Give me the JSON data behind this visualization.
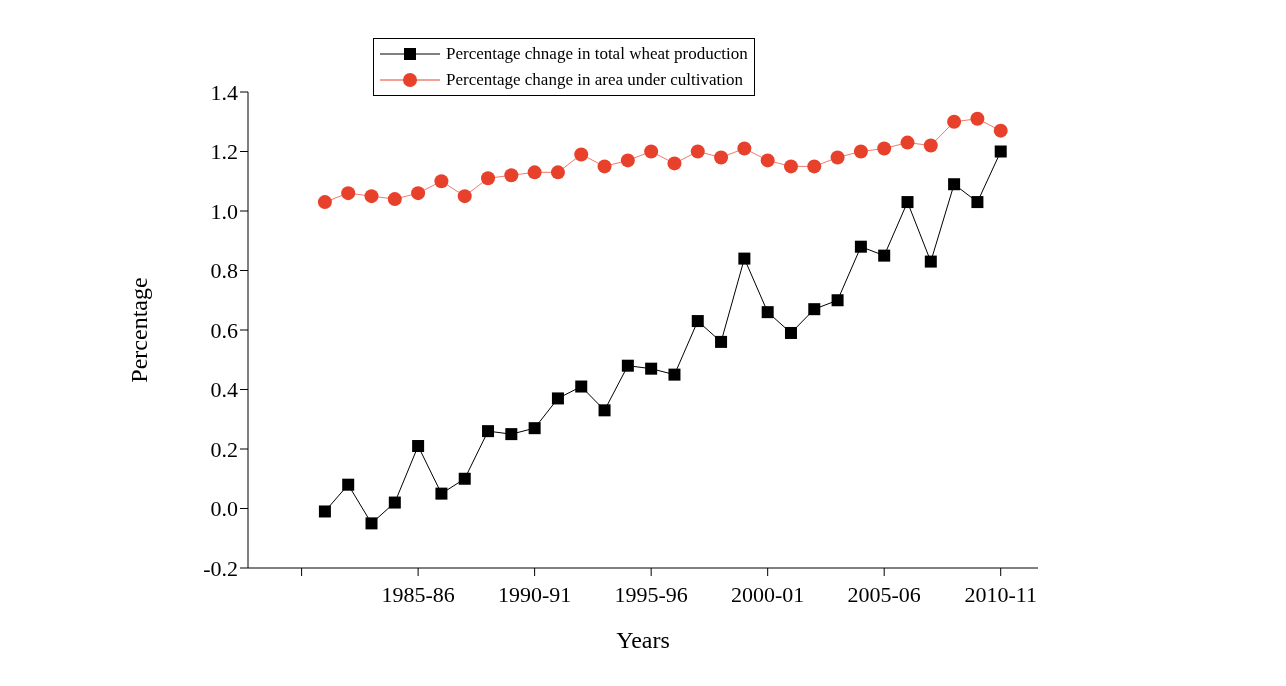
{
  "chart_data": {
    "type": "line",
    "xlabel": "Years",
    "ylabel": "Percentage",
    "legend": "top",
    "grid": false,
    "line_style": "solid",
    "categories": [
      null,
      null,
      null,
      null,
      null,
      "1985-86",
      null,
      null,
      null,
      null,
      "1990-91",
      null,
      null,
      null,
      null,
      "1995-96",
      null,
      null,
      null,
      null,
      "2000-01",
      null,
      null,
      null,
      null,
      "2005-06",
      null,
      null,
      null,
      null,
      "2010-11"
    ],
    "ylim": [
      -0.2,
      1.4
    ],
    "yticks": [
      {
        "value": -0.2,
        "label": "-0.2"
      },
      {
        "value": 0,
        "label": "0.0"
      },
      {
        "value": 0.2,
        "label": "0.2"
      },
      {
        "value": 0.4,
        "label": "0.4"
      },
      {
        "value": 0.6,
        "label": "0.6"
      },
      {
        "value": 0.8,
        "label": "0.8"
      },
      {
        "value": 1,
        "label": "1.0"
      },
      {
        "value": 1.2,
        "label": "1.2"
      },
      {
        "value": 1.4,
        "label": "1.4"
      }
    ],
    "series": [
      {
        "name": "Percentage chnage in total wheat production",
        "color": "#000000",
        "marker": "square",
        "values": [
          null,
          -0.01,
          0.08,
          -0.05,
          0.02,
          0.21,
          0.05,
          0.1,
          0.26,
          0.25,
          0.27,
          0.37,
          0.41,
          0.33,
          0.48,
          0.47,
          0.45,
          0.63,
          0.56,
          0.84,
          0.66,
          0.59,
          0.67,
          0.7,
          0.88,
          0.85,
          1.03,
          0.83,
          1.09,
          1.03,
          1.2
        ]
      },
      {
        "name": "Percentage change in area under cultivation",
        "color": "#e8412b",
        "marker": "circle",
        "values": [
          null,
          1.03,
          1.06,
          1.05,
          1.04,
          1.06,
          1.1,
          1.05,
          1.11,
          1.12,
          1.13,
          1.13,
          1.19,
          1.15,
          1.17,
          1.2,
          1.16,
          1.2,
          1.18,
          1.21,
          1.17,
          1.15,
          1.15,
          1.18,
          1.2,
          1.21,
          1.23,
          1.22,
          1.3,
          1.31,
          1.27
        ]
      }
    ]
  }
}
